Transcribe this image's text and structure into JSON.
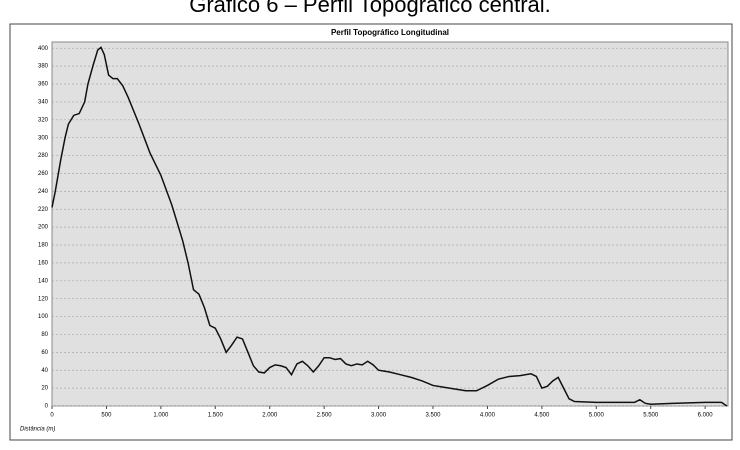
{
  "caption": "Gráfico 6 – Perfil Topográfico central.",
  "chart_data": {
    "type": "line",
    "title": "Perfil Topográfico Longitudinal",
    "x_label": "Distância (m)",
    "x": [
      0,
      30,
      80,
      120,
      150,
      200,
      250,
      300,
      330,
      380,
      420,
      450,
      480,
      520,
      560,
      600,
      650,
      700,
      800,
      900,
      1000,
      1100,
      1200,
      1250,
      1300,
      1350,
      1400,
      1450,
      1500,
      1550,
      1600,
      1650,
      1700,
      1750,
      1800,
      1850,
      1900,
      1950,
      2000,
      2050,
      2100,
      2150,
      2200,
      2250,
      2300,
      2350,
      2400,
      2450,
      2500,
      2550,
      2600,
      2650,
      2700,
      2750,
      2800,
      2850,
      2900,
      2950,
      3000,
      3100,
      3200,
      3300,
      3400,
      3500,
      3600,
      3700,
      3800,
      3900,
      4000,
      4100,
      4200,
      4300,
      4400,
      4450,
      4500,
      4550,
      4600,
      4650,
      4700,
      4750,
      4800,
      5000,
      5200,
      5350,
      5400,
      5450,
      5500,
      5700,
      6000,
      6150,
      6200
    ],
    "series": [
      {
        "name": "Perfil",
        "color": "#111111",
        "values": [
          222,
          240,
          275,
          300,
          315,
          325,
          327,
          340,
          360,
          382,
          398,
          401,
          393,
          370,
          366,
          366,
          358,
          345,
          315,
          283,
          258,
          225,
          185,
          160,
          130,
          125,
          110,
          90,
          87,
          75,
          60,
          68,
          77,
          75,
          60,
          45,
          38,
          37,
          43,
          46,
          45,
          43,
          35,
          47,
          50,
          45,
          38,
          45,
          54,
          54,
          52,
          53,
          47,
          45,
          47,
          46,
          50,
          46,
          40,
          38,
          35,
          32,
          28,
          23,
          21,
          19,
          17,
          17,
          23,
          30,
          33,
          34,
          36,
          33,
          20,
          22,
          28,
          32,
          20,
          8,
          5,
          4,
          4,
          4,
          7,
          3,
          2,
          3,
          4,
          4,
          0
        ]
      }
    ],
    "xlim": [
      0,
      6210
    ],
    "ylim": [
      0,
      407
    ],
    "xticks": [
      0,
      500,
      {
        "value": 1000,
        "label": "1.000"
      },
      {
        "value": 1500,
        "label": "1.500"
      },
      {
        "value": 2000,
        "label": "2.000"
      },
      {
        "value": 2500,
        "label": "2.500"
      },
      {
        "value": 3000,
        "label": "3.000"
      },
      {
        "value": 3500,
        "label": "3.500"
      },
      {
        "value": 4000,
        "label": "4.000"
      },
      {
        "value": 4500,
        "label": "4.500"
      },
      {
        "value": 5000,
        "label": "5.000"
      },
      {
        "value": 5500,
        "label": "5.500"
      },
      {
        "value": 6000,
        "label": "6.000"
      }
    ],
    "yticks": [
      0,
      20,
      40,
      60,
      80,
      100,
      120,
      140,
      160,
      180,
      200,
      220,
      240,
      260,
      280,
      300,
      320,
      340,
      360,
      380,
      400
    ],
    "grid": true
  }
}
